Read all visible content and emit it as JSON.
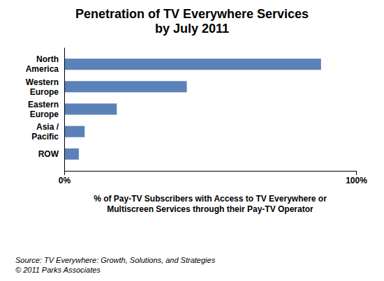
{
  "chart_data": {
    "type": "bar",
    "orientation": "horizontal",
    "title": "Penetration of TV Everywhere Services\nby July 2011",
    "categories": [
      "North\nAmerica",
      "Western\nEurope",
      "Eastern\nEurope",
      "Asia /\nPacific",
      "ROW"
    ],
    "values": [
      88,
      42,
      18,
      7,
      5
    ],
    "color": "#5b82b8",
    "xlim": [
      0,
      100
    ],
    "xticks": [
      {
        "value": 0,
        "label": "0%"
      },
      {
        "value": 100,
        "label": "100%"
      }
    ],
    "xlabel": "% of Pay-TV Subscribers with Access to TV Everywhere or\nMultiscreen Services through their Pay-TV Operator",
    "annotations": [
      "Source: TV Everywhere: Growth, Solutions, and Strategies\n© 2011 Parks Associates"
    ],
    "grid": false
  }
}
